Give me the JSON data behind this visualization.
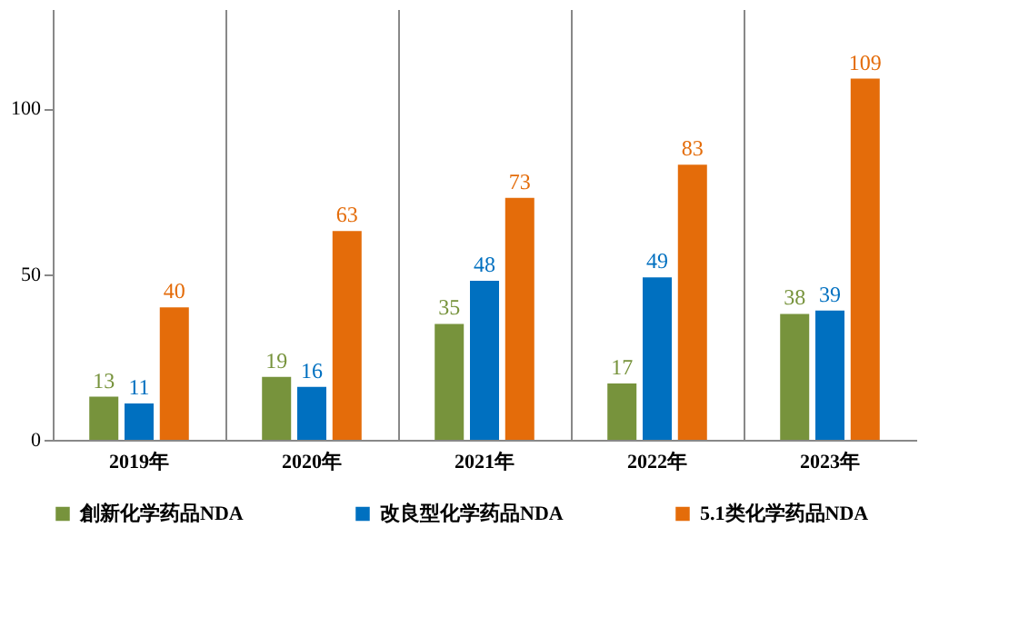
{
  "chart_data": {
    "type": "bar",
    "categories": [
      "2019年",
      "2020年",
      "2021年",
      "2022年",
      "2023年"
    ],
    "series": [
      {
        "name": "創新化学药品NDA",
        "color": "#77933c",
        "values": [
          13,
          19,
          35,
          17,
          38
        ]
      },
      {
        "name": "改良型化学药品NDA",
        "color": "#0070c0",
        "values": [
          11,
          16,
          48,
          49,
          39
        ]
      },
      {
        "name": "5.1类化学药品NDA",
        "color": "#e46c0a",
        "values": [
          40,
          63,
          73,
          83,
          109
        ]
      }
    ],
    "ylim": [
      0,
      130
    ],
    "yticks": [
      0,
      50,
      100
    ],
    "grid": "x",
    "legend": "bottom",
    "data_labels": true
  }
}
